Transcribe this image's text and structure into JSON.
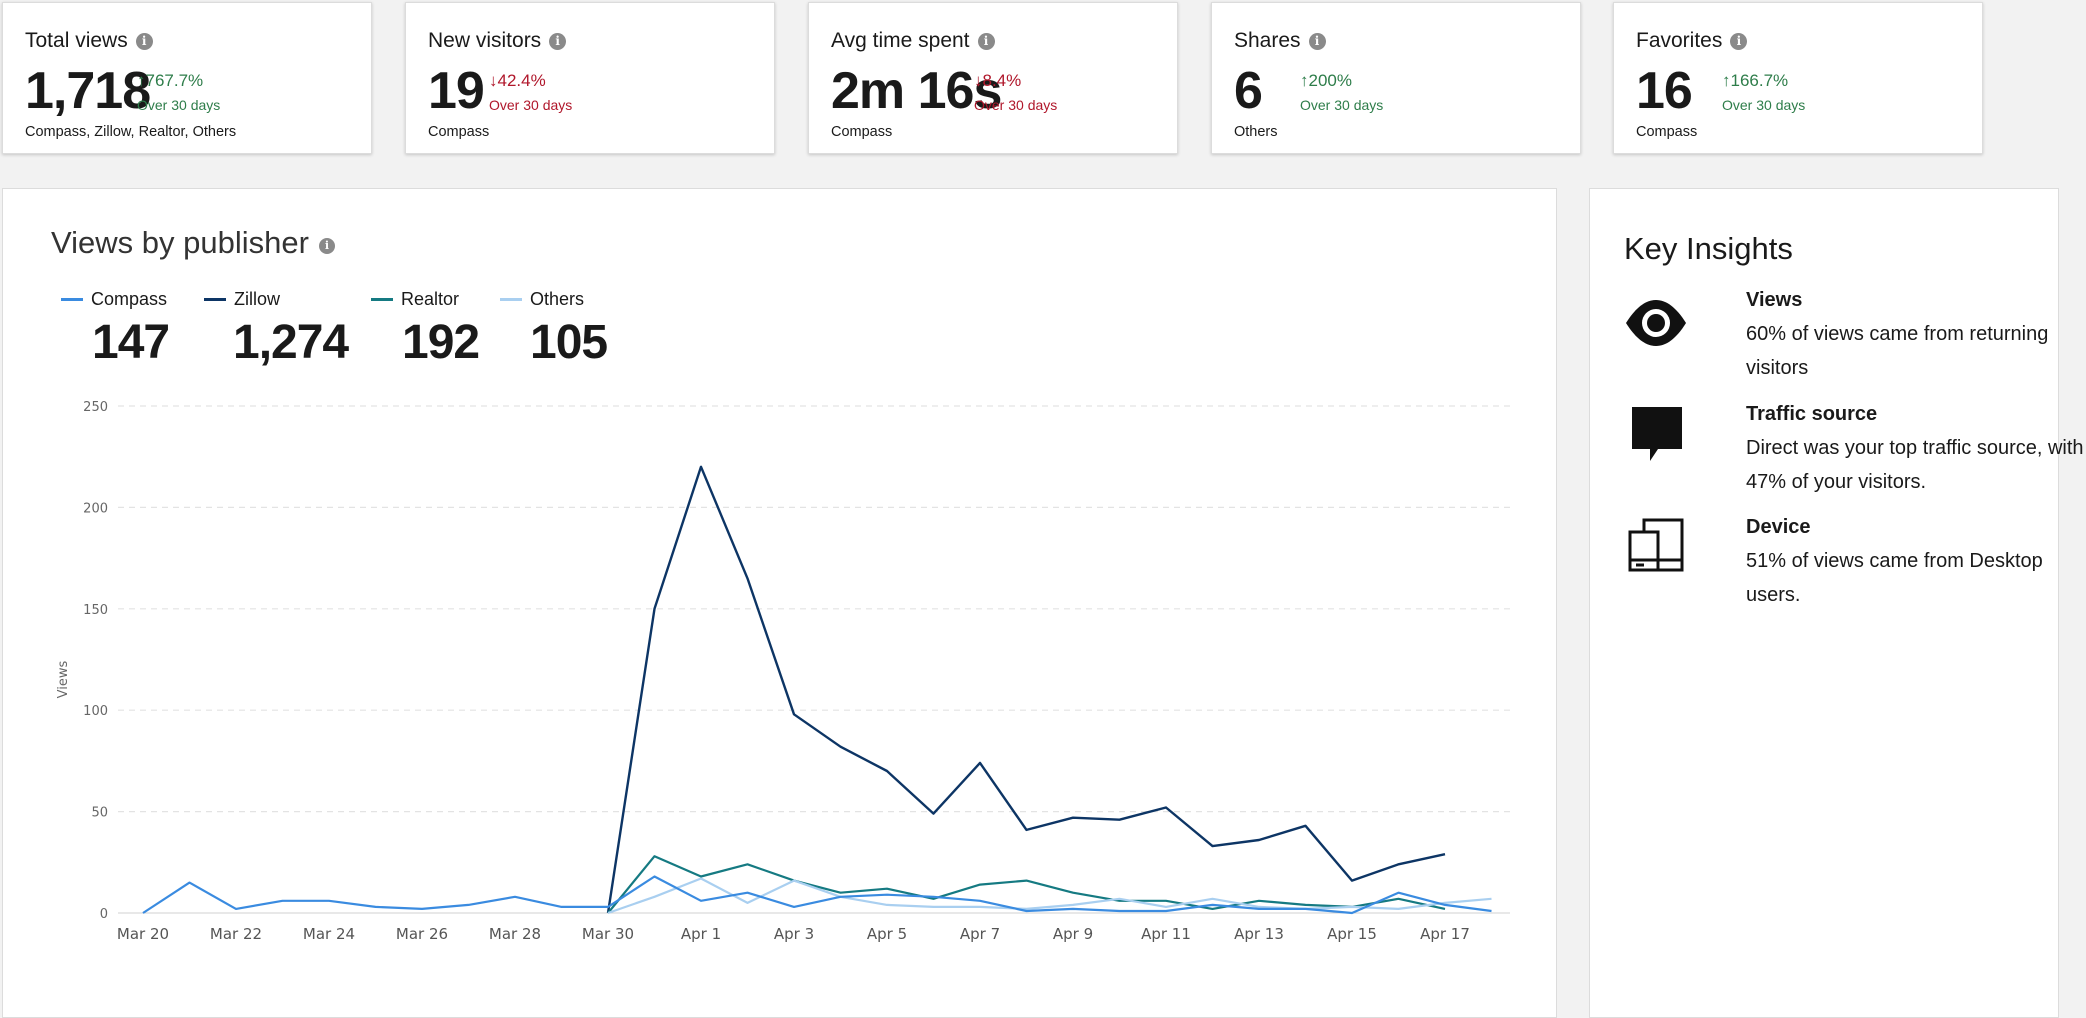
{
  "stats": [
    {
      "title": "Total views",
      "value": "1,718",
      "change": "767.7%",
      "direction": "up",
      "period": "Over 30 days",
      "source": "Compass, Zillow, Realtor, Others"
    },
    {
      "title": "New visitors",
      "value": "19",
      "change": "42.4%",
      "direction": "down",
      "period": "Over 30 days",
      "source": "Compass"
    },
    {
      "title": "Avg time spent",
      "value": "2m 16s",
      "change": "8.4%",
      "direction": "down",
      "period": "Over 30 days",
      "source": "Compass"
    },
    {
      "title": "Shares",
      "value": "6",
      "change": "200%",
      "direction": "up",
      "period": "Over 30 days",
      "source": "Others"
    },
    {
      "title": "Favorites",
      "value": "16",
      "change": "166.7%",
      "direction": "up",
      "period": "Over 30 days",
      "source": "Compass"
    }
  ],
  "icons": {
    "info": "info-icon",
    "arrow_up": "arrow-up-icon",
    "arrow_down": "arrow-down-icon"
  },
  "arrows": {
    "up": "↑",
    "down": "↓"
  },
  "info_glyph": "i",
  "chart_panel": {
    "title": "Views by publisher",
    "legend": [
      {
        "name": "Compass",
        "total": "147",
        "color": "#3a8be0"
      },
      {
        "name": "Zillow",
        "total": "1,274",
        "color": "#0d3565"
      },
      {
        "name": "Realtor",
        "total": "192",
        "color": "#157a82"
      },
      {
        "name": "Others",
        "total": "105",
        "color": "#a9cff0"
      }
    ]
  },
  "chart_data": {
    "type": "line",
    "title": "Views by publisher",
    "xlabel": "",
    "ylabel": "Views",
    "ylim": [
      0,
      250
    ],
    "yticks": [
      0,
      50,
      100,
      150,
      200,
      250
    ],
    "grid": true,
    "x": [
      "Mar 20",
      "Mar 21",
      "Mar 22",
      "Mar 23",
      "Mar 24",
      "Mar 25",
      "Mar 26",
      "Mar 27",
      "Mar 28",
      "Mar 29",
      "Mar 30",
      "Mar 31",
      "Apr 1",
      "Apr 2",
      "Apr 3",
      "Apr 4",
      "Apr 5",
      "Apr 6",
      "Apr 7",
      "Apr 8",
      "Apr 9",
      "Apr 10",
      "Apr 11",
      "Apr 12",
      "Apr 13",
      "Apr 14",
      "Apr 15",
      "Apr 16",
      "Apr 17",
      "Apr 18"
    ],
    "xticks": [
      "Mar 20",
      "Mar 22",
      "Mar 24",
      "Mar 26",
      "Mar 28",
      "Mar 30",
      "Apr 1",
      "Apr 3",
      "Apr 5",
      "Apr 7",
      "Apr 9",
      "Apr 11",
      "Apr 13",
      "Apr 15",
      "Apr 17"
    ],
    "series": [
      {
        "name": "Zillow",
        "color": "#0d3565",
        "values": [
          null,
          null,
          null,
          null,
          null,
          null,
          null,
          null,
          null,
          null,
          0,
          150,
          220,
          165,
          98,
          82,
          70,
          49,
          74,
          41,
          47,
          46,
          52,
          33,
          36,
          43,
          16,
          24,
          29,
          null
        ]
      },
      {
        "name": "Realtor",
        "color": "#157a82",
        "values": [
          null,
          null,
          null,
          null,
          null,
          null,
          null,
          null,
          null,
          null,
          0,
          28,
          18,
          24,
          16,
          10,
          12,
          7,
          14,
          16,
          10,
          6,
          6,
          2,
          6,
          4,
          3,
          7,
          2,
          null
        ]
      },
      {
        "name": "Others",
        "color": "#a9cff0",
        "values": [
          null,
          null,
          null,
          null,
          null,
          null,
          null,
          null,
          null,
          null,
          0,
          8,
          17,
          5,
          16,
          8,
          4,
          3,
          3,
          2,
          4,
          7,
          3,
          7,
          3,
          2,
          3,
          2,
          5,
          7
        ]
      },
      {
        "name": "Compass",
        "color": "#3a8be0",
        "values": [
          0,
          15,
          2,
          6,
          6,
          3,
          2,
          4,
          8,
          3,
          3,
          18,
          6,
          10,
          3,
          8,
          9,
          8,
          6,
          1,
          2,
          1,
          1,
          4,
          2,
          2,
          0,
          10,
          4,
          1
        ]
      }
    ]
  },
  "insights": {
    "title": "Key Insights",
    "items": [
      {
        "icon": "eye-icon",
        "heading": "Views",
        "body": "60% of views came from returning visitors"
      },
      {
        "icon": "chat-bubble-icon",
        "heading": "Traffic source",
        "body": "Direct was your top traffic source, with 47% of your visitors."
      },
      {
        "icon": "devices-icon",
        "heading": "Device",
        "body": "51% of views came from Desktop users."
      }
    ]
  }
}
